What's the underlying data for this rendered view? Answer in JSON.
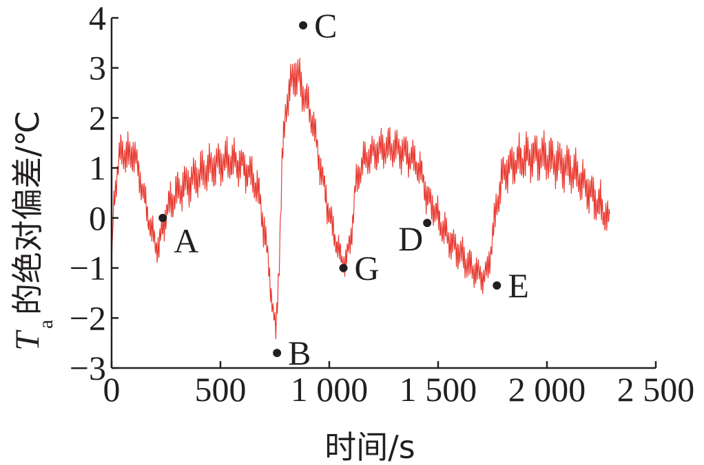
{
  "chart_data": {
    "type": "line",
    "xlabel": "时间/s",
    "ylabel_symbol": "T",
    "ylabel_subscript": "a",
    "ylabel_text": "的绝对偏差/℃",
    "xlim": [
      0,
      2500
    ],
    "ylim": [
      -3,
      4
    ],
    "x_ticks": [
      0,
      500,
      1000,
      1500,
      2000,
      2500
    ],
    "x_tick_labels": [
      "0",
      "500",
      "1 000",
      "1 500",
      "2 000",
      "2 500"
    ],
    "y_ticks": [
      -3,
      -2,
      -1,
      0,
      1,
      2,
      3,
      4
    ],
    "y_tick_labels": [
      "−3",
      "−2",
      "−1",
      "0",
      "1",
      "2",
      "3",
      "4"
    ],
    "grid": false,
    "series": [
      {
        "color": "#e8392f",
        "x": [
          0,
          10,
          25,
          40,
          60,
          80,
          100,
          120,
          140,
          160,
          180,
          200,
          215,
          230,
          250,
          270,
          300,
          350,
          400,
          450,
          500,
          550,
          600,
          650,
          680,
          700,
          720,
          740,
          755,
          770,
          785,
          800,
          820,
          840,
          860,
          880,
          900,
          930,
          960,
          990,
          1020,
          1040,
          1060,
          1080,
          1100,
          1120,
          1150,
          1200,
          1250,
          1300,
          1350,
          1400,
          1430,
          1450,
          1480,
          1520,
          1560,
          1600,
          1640,
          1680,
          1710,
          1730,
          1750,
          1770,
          1800,
          1850,
          1900,
          1950,
          2000,
          2050,
          2100,
          2150,
          2200,
          2250,
          2290
        ],
        "y": [
          -0.9,
          0.3,
          0.9,
          1.3,
          1.3,
          1.2,
          1.35,
          1.0,
          0.6,
          0.2,
          -0.2,
          -0.5,
          -0.6,
          -0.3,
          0.1,
          0.3,
          0.5,
          0.7,
          0.85,
          1.0,
          1.1,
          1.15,
          1.05,
          0.8,
          0.4,
          -0.2,
          -0.9,
          -1.8,
          -2.3,
          -0.8,
          1.2,
          2.2,
          2.6,
          2.9,
          2.8,
          2.5,
          2.3,
          1.8,
          1.0,
          0.3,
          -0.3,
          -0.6,
          -0.9,
          -0.8,
          -0.4,
          0.6,
          1.1,
          1.3,
          1.4,
          1.4,
          1.3,
          1.1,
          0.8,
          0.4,
          0.2,
          -0.2,
          -0.5,
          -0.7,
          -0.95,
          -1.1,
          -1.2,
          -1.0,
          -0.4,
          0.3,
          0.9,
          1.1,
          1.2,
          1.25,
          1.2,
          1.1,
          1.0,
          0.8,
          0.5,
          0.2,
          -0.1
        ],
        "noise_amplitude": [
          0,
          0.3,
          0.45,
          0.45,
          0.5,
          0.55,
          0.5,
          0.45,
          0.4,
          0.4,
          0.4,
          0.4,
          0.4,
          0.4,
          0.45,
          0.5,
          0.5,
          0.55,
          0.55,
          0.55,
          0.55,
          0.55,
          0.5,
          0.5,
          0.5,
          0.5,
          0.4,
          0.3,
          0.3,
          0.5,
          0.5,
          0.5,
          0.5,
          0.6,
          0.6,
          0.5,
          0.45,
          0.45,
          0.45,
          0.45,
          0.4,
          0.35,
          0.35,
          0.35,
          0.4,
          0.45,
          0.45,
          0.45,
          0.5,
          0.5,
          0.5,
          0.45,
          0.45,
          0.45,
          0.45,
          0.45,
          0.45,
          0.45,
          0.45,
          0.4,
          0.35,
          0.4,
          0.45,
          0.5,
          0.55,
          0.55,
          0.6,
          0.6,
          0.6,
          0.6,
          0.6,
          0.55,
          0.55,
          0.55,
          0.4
        ]
      }
    ],
    "annotations": [
      {
        "label": "A",
        "x": 235,
        "y": 0.0,
        "side": "bottom-right"
      },
      {
        "label": "B",
        "x": 760,
        "y": -2.7,
        "side": "right"
      },
      {
        "label": "C",
        "x": 880,
        "y": 3.85,
        "side": "right"
      },
      {
        "label": "D",
        "x": 1450,
        "y": -0.1,
        "side": "bottom-left"
      },
      {
        "label": "E",
        "x": 1770,
        "y": -1.35,
        "side": "right"
      },
      {
        "label": "G",
        "x": 1065,
        "y": -1.0,
        "side": "right"
      }
    ],
    "axis_color": "#231f20",
    "marker_color": "#231f20"
  }
}
